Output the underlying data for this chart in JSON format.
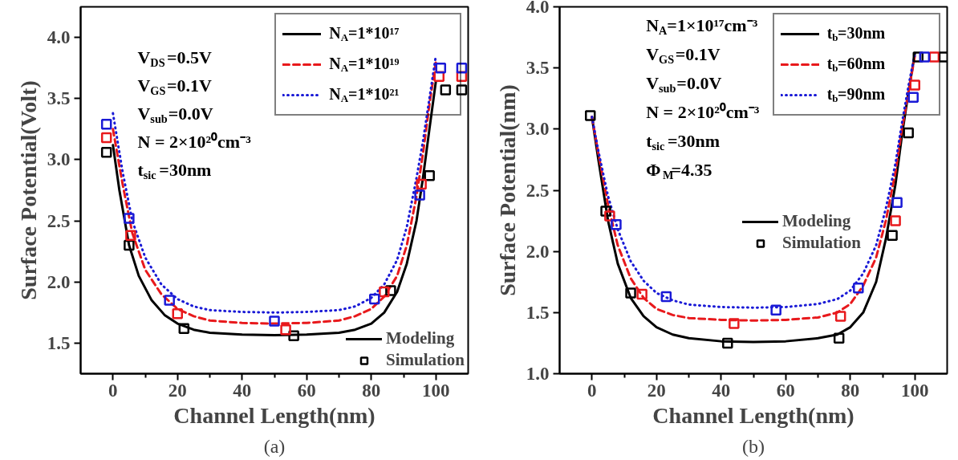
{
  "chart_data": [
    {
      "type": "line",
      "title": "(a)",
      "xlabel": "Channel Length(nm)",
      "ylabel": "Surface Potential(Volt)",
      "xlim": [
        -10,
        110
      ],
      "ylim": [
        1.25,
        4.25
      ],
      "xticks": [
        0,
        20,
        40,
        60,
        80,
        100,
        {
          "value": 10,
          "label": null
        },
        {
          "value": 30,
          "label": null
        },
        {
          "value": 50,
          "label": null
        },
        {
          "value": 70,
          "label": null
        },
        {
          "value": 90,
          "label": null
        }
      ],
      "yticks": [
        1.5,
        {
          "value": 2,
          "label": "2.0"
        },
        2.5,
        {
          "value": 3,
          "label": "3.0"
        },
        3.5,
        {
          "value": 4,
          "label": "4.0"
        }
      ],
      "grid": false,
      "legend": "right",
      "annotations": [
        "V$_{DS}$=0.5V",
        "V$_{GS}$=0.1V",
        "V$_{sub}$=0.0V",
        "N = 2×10²⁰cm⁻³",
        "t$_{sic}$=30nm",
        "Modeling"
      ],
      "series": [
        {
          "name": "N$_{A}$=1*10¹⁷",
          "color": "#000000",
          "line_style": "solid",
          "x": [
            0,
            2,
            5,
            8,
            12,
            16,
            20,
            25,
            30,
            40,
            50,
            60,
            70,
            75,
            80,
            84,
            88,
            91,
            94,
            96,
            98,
            100
          ],
          "values": [
            3.12,
            2.75,
            2.3,
            2.05,
            1.85,
            1.73,
            1.66,
            1.61,
            1.585,
            1.57,
            1.565,
            1.57,
            1.585,
            1.61,
            1.66,
            1.75,
            1.92,
            2.15,
            2.5,
            2.85,
            3.25,
            3.64
          ]
        },
        {
          "name": "N$_{A}$=1*10¹⁹",
          "color": "#e8191c",
          "line_style": "dashed",
          "x": [
            0,
            3,
            6,
            10,
            15,
            20,
            25,
            30,
            40,
            50,
            60,
            70,
            75,
            80,
            84,
            88,
            91,
            94,
            96,
            98,
            100
          ],
          "values": [
            3.25,
            2.8,
            2.4,
            2.1,
            1.9,
            1.78,
            1.72,
            1.685,
            1.665,
            1.66,
            1.665,
            1.685,
            1.72,
            1.78,
            1.88,
            2.05,
            2.3,
            2.7,
            3.05,
            3.45,
            3.8
          ]
        },
        {
          "name": "N$_{A}$=1*10²¹",
          "color": "#1a1ad6",
          "line_style": "dotted",
          "x": [
            0,
            3,
            6,
            10,
            15,
            20,
            25,
            30,
            40,
            50,
            60,
            70,
            75,
            80,
            84,
            88,
            91,
            94,
            96,
            98,
            100
          ],
          "values": [
            3.38,
            2.9,
            2.5,
            2.2,
            1.98,
            1.86,
            1.8,
            1.77,
            1.755,
            1.75,
            1.755,
            1.77,
            1.8,
            1.87,
            1.98,
            2.18,
            2.45,
            2.85,
            3.15,
            3.5,
            3.85
          ]
        },
        {
          "name": "Simulation",
          "type": "scatter",
          "marker": "square",
          "color": "#000000",
          "x": [
            -2,
            5,
            22,
            56,
            86,
            98,
            103,
            108
          ],
          "values": [
            3.06,
            2.3,
            1.62,
            1.56,
            1.93,
            2.87,
            3.57,
            3.57
          ]
        },
        {
          "type": "scatter",
          "marker": "square",
          "color": "#e8191c",
          "x": [
            -2,
            5.5,
            20,
            53.5,
            84,
            95.5,
            101,
            108
          ],
          "values": [
            3.18,
            2.38,
            1.74,
            1.61,
            1.92,
            2.8,
            3.68,
            3.68
          ]
        },
        {
          "type": "scatter",
          "marker": "square",
          "color": "#1a1ad6",
          "x": [
            -2,
            5,
            17.5,
            50,
            81,
            95,
            101.5,
            108
          ],
          "values": [
            3.29,
            2.52,
            1.85,
            1.68,
            1.86,
            2.71,
            3.75,
            3.75
          ]
        }
      ]
    },
    {
      "type": "line",
      "title": "(b)",
      "xlabel": "Channel Length(nm)",
      "ylabel": "Surface Potential(nm)",
      "xlim": [
        -10,
        110
      ],
      "ylim": [
        1.0,
        4.0
      ],
      "xticks": [
        0,
        20,
        40,
        60,
        80,
        100,
        {
          "value": 10,
          "label": null
        },
        {
          "value": 30,
          "label": null
        },
        {
          "value": 50,
          "label": null
        },
        {
          "value": 70,
          "label": null
        },
        {
          "value": 90,
          "label": null
        }
      ],
      "yticks": [
        {
          "value": 1,
          "label": "1.0"
        },
        1.5,
        {
          "value": 2,
          "label": "2.0"
        },
        2.5,
        {
          "value": 3,
          "label": "3.0"
        },
        3.5,
        {
          "value": 4,
          "label": "4.0"
        }
      ],
      "grid": false,
      "legend": "top right",
      "annotations": [
        "N$_{A}$=1×10¹⁷cm⁻³",
        "V$_{GS}$=0.1V",
        "V$_{sub}$=0.0V",
        "N = 2×10²⁰cm⁻³",
        "t$_{sic}$=30nm",
        "Φ$_{M}$=4.35",
        "Modeling"
      ],
      "series": [
        {
          "name": "t$_{b}$=30nm",
          "color": "#000000",
          "line_style": "solid",
          "x": [
            0,
            2,
            5,
            8,
            12,
            16,
            20,
            25,
            30,
            40,
            50,
            60,
            70,
            76,
            80,
            84,
            88,
            91,
            94,
            96,
            98,
            100
          ],
          "values": [
            3.1,
            2.75,
            2.25,
            1.9,
            1.62,
            1.47,
            1.38,
            1.32,
            1.29,
            1.265,
            1.26,
            1.265,
            1.29,
            1.32,
            1.38,
            1.5,
            1.75,
            2.1,
            2.55,
            2.95,
            3.3,
            3.62
          ]
        },
        {
          "name": "t$_{b}$=60nm",
          "color": "#e8191c",
          "line_style": "dashed",
          "x": [
            0,
            2,
            5,
            8,
            12,
            16,
            20,
            25,
            30,
            40,
            50,
            60,
            70,
            76,
            80,
            84,
            88,
            91,
            94,
            96,
            98,
            100
          ],
          "values": [
            3.1,
            2.8,
            2.38,
            2.05,
            1.78,
            1.62,
            1.53,
            1.48,
            1.455,
            1.44,
            1.435,
            1.44,
            1.46,
            1.5,
            1.57,
            1.72,
            1.95,
            2.25,
            2.65,
            3.0,
            3.3,
            3.6
          ]
        },
        {
          "name": "t$_{b}$=90nm",
          "color": "#1a1ad6",
          "line_style": "dotted",
          "x": [
            0,
            2,
            5,
            8,
            12,
            16,
            20,
            25,
            30,
            40,
            50,
            60,
            70,
            76,
            80,
            84,
            88,
            91,
            94,
            96,
            98,
            100
          ],
          "values": [
            3.1,
            2.82,
            2.45,
            2.18,
            1.92,
            1.76,
            1.66,
            1.6,
            1.565,
            1.545,
            1.54,
            1.545,
            1.57,
            1.61,
            1.68,
            1.82,
            2.05,
            2.35,
            2.72,
            3.05,
            3.35,
            3.62
          ]
        },
        {
          "name": "Simulation",
          "type": "scatter",
          "marker": "square",
          "color": "#000000",
          "x": [
            -0.5,
            4.3,
            12,
            42,
            76.5,
            93,
            98,
            101,
            109
          ],
          "values": [
            3.11,
            2.33,
            1.66,
            1.25,
            1.29,
            2.13,
            2.97,
            3.59,
            3.59
          ]
        },
        {
          "type": "scatter",
          "marker": "square",
          "color": "#e8191c",
          "x": [
            5.5,
            15.5,
            44,
            77,
            94,
            100,
            106
          ],
          "values": [
            2.29,
            1.65,
            1.41,
            1.47,
            2.25,
            3.36,
            3.59
          ]
        },
        {
          "type": "scatter",
          "marker": "square",
          "color": "#1a1ad6",
          "x": [
            7.5,
            23,
            57,
            82.5,
            94.5,
            99.5,
            103
          ],
          "values": [
            2.22,
            1.63,
            1.52,
            1.7,
            2.4,
            3.26,
            3.59
          ]
        }
      ]
    }
  ]
}
